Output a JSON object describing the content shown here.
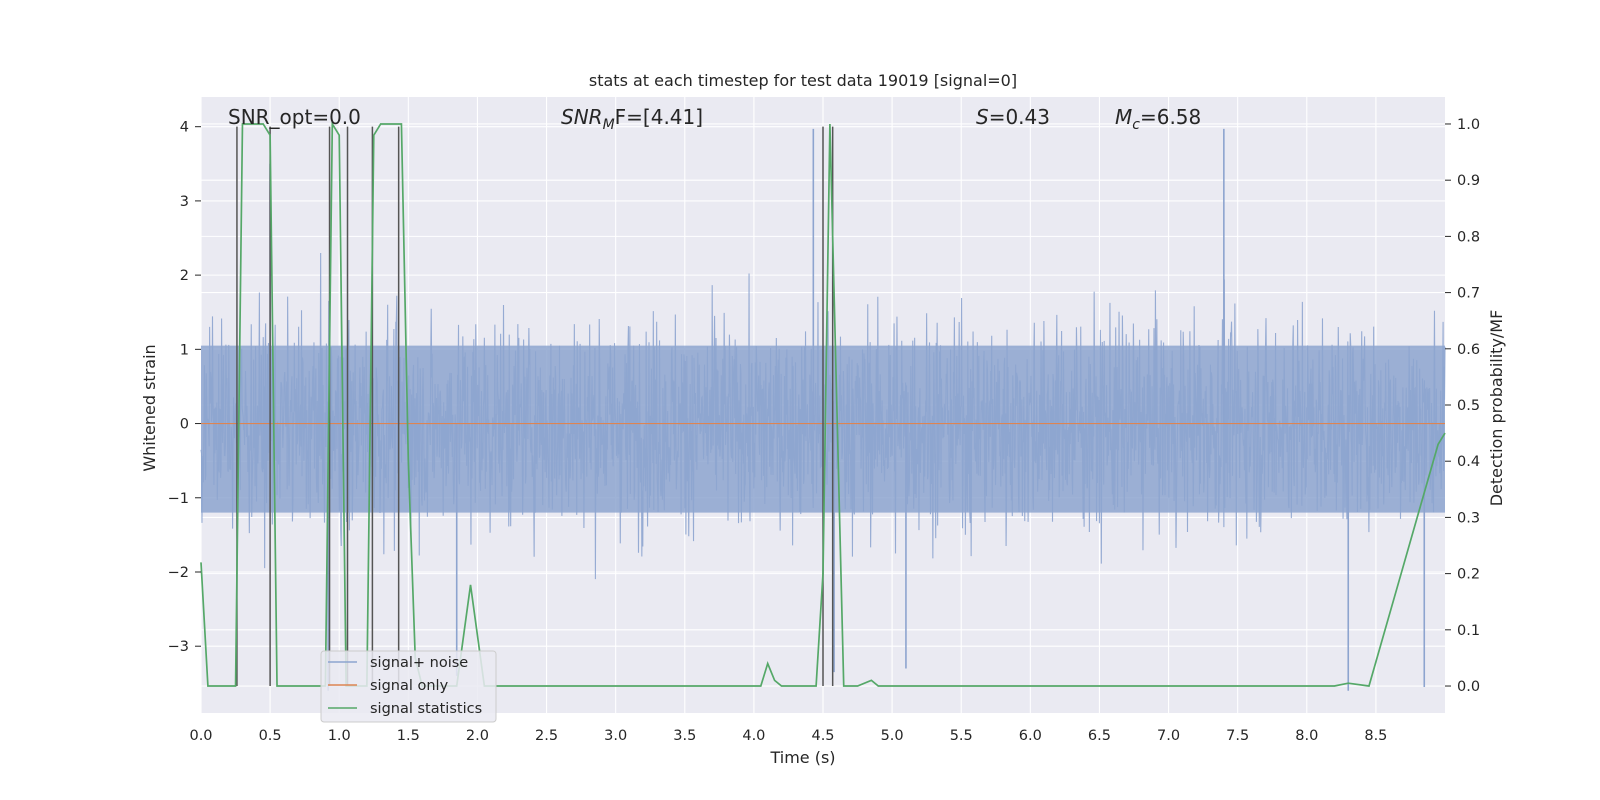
{
  "chart_data": {
    "type": "line",
    "title": "stats at each timestep for test data 19019 [signal=0]",
    "xlabel": "Time (s)",
    "ylabel": "Whitened strain",
    "ylabel_right": "Detection probability/MF",
    "xlim": [
      0,
      9.0
    ],
    "ylim": [
      -3.9,
      4.4
    ],
    "ylim_right": [
      -0.048,
      1.048
    ],
    "grid": true,
    "x_ticks": [
      "0.0",
      "0.5",
      "1.0",
      "1.5",
      "2.0",
      "2.5",
      "3.0",
      "3.5",
      "4.0",
      "4.5",
      "5.0",
      "5.5",
      "6.0",
      "6.5",
      "7.0",
      "7.5",
      "8.0",
      "8.5"
    ],
    "y_ticks": [
      "4",
      "3",
      "2",
      "1",
      "0",
      "−1",
      "−2",
      "−3"
    ],
    "y_right_ticks": [
      "1.0",
      "0.9",
      "0.8",
      "0.7",
      "0.6",
      "0.5",
      "0.4",
      "0.3",
      "0.2",
      "0.1",
      "0.0"
    ],
    "annotations": {
      "snr_opt": "SNR_opt=0.0",
      "snr_mf_label": "SNR",
      "snr_mf_sub": "M",
      "snr_mf_rest": "F=[4.41]",
      "s_label": "S",
      "s_value": "=0.43",
      "mc_label": "M",
      "mc_sub": "c",
      "mc_value": "=6.58"
    },
    "legend": {
      "placement": "lower-left",
      "entries": [
        "signal+ noise",
        "signal only",
        "signal statistics"
      ]
    },
    "colors": {
      "noise": "#8da4cf",
      "signal": "#dd8452",
      "stats": "#55a868",
      "vlines": "#555555",
      "plot_bg": "#eaeaf2",
      "grid": "#ffffff"
    },
    "series": [
      {
        "name": "signal+ noise",
        "kind": "noise",
        "description": "whitened strain, roughly gaussian noise spanning about -3.6 to 4.0",
        "amplitude_core": 1.0,
        "envelope": [
          -2.2,
          2.0
        ],
        "spikes": [
          [
            1.85,
            -3.4
          ],
          [
            4.43,
            3.97
          ],
          [
            4.58,
            -3.35
          ],
          [
            5.1,
            -3.3
          ],
          [
            7.4,
            3.97
          ],
          [
            8.3,
            -3.6
          ],
          [
            8.85,
            -3.55
          ],
          [
            0.5,
            3.5
          ],
          [
            0.92,
            -3.6
          ]
        ]
      },
      {
        "name": "signal only",
        "values_x": [
          0,
          9.0
        ],
        "values_y": [
          0,
          0
        ]
      },
      {
        "name": "signal statistics",
        "axis": "right",
        "x": [
          0.0,
          0.05,
          0.15,
          0.25,
          0.3,
          0.45,
          0.5,
          0.55,
          0.9,
          0.95,
          1.0,
          1.05,
          1.1,
          1.2,
          1.25,
          1.3,
          1.45,
          1.5,
          1.55,
          1.6,
          1.7,
          1.85,
          1.95,
          2.05,
          2.1,
          2.5,
          3.0,
          3.5,
          4.0,
          4.05,
          4.1,
          4.15,
          4.2,
          4.3,
          4.45,
          4.5,
          4.55,
          4.6,
          4.65,
          4.75,
          4.85,
          4.9,
          5.0,
          5.5,
          6.0,
          6.5,
          7.0,
          7.5,
          8.0,
          8.2,
          8.3,
          8.45,
          8.95,
          9.0
        ],
        "y": [
          0.22,
          0.0,
          0.0,
          0.0,
          1.0,
          1.0,
          0.98,
          0.0,
          0.0,
          1.0,
          0.98,
          0.0,
          0.0,
          0.0,
          0.98,
          1.0,
          1.0,
          0.4,
          0.05,
          0.0,
          0.0,
          0.0,
          0.18,
          0.0,
          0.0,
          0.0,
          0.0,
          0.0,
          0.0,
          0.0,
          0.04,
          0.01,
          0.0,
          0.0,
          0.0,
          0.2,
          1.0,
          0.5,
          0.0,
          0.0,
          0.01,
          0.0,
          0.0,
          0.0,
          0.0,
          0.0,
          0.0,
          0.0,
          0.0,
          0.0,
          0.005,
          0.0,
          0.43,
          0.45
        ]
      }
    ],
    "vlines": [
      0.26,
      0.5,
      0.93,
      1.06,
      1.24,
      1.43,
      4.5,
      4.57
    ]
  }
}
